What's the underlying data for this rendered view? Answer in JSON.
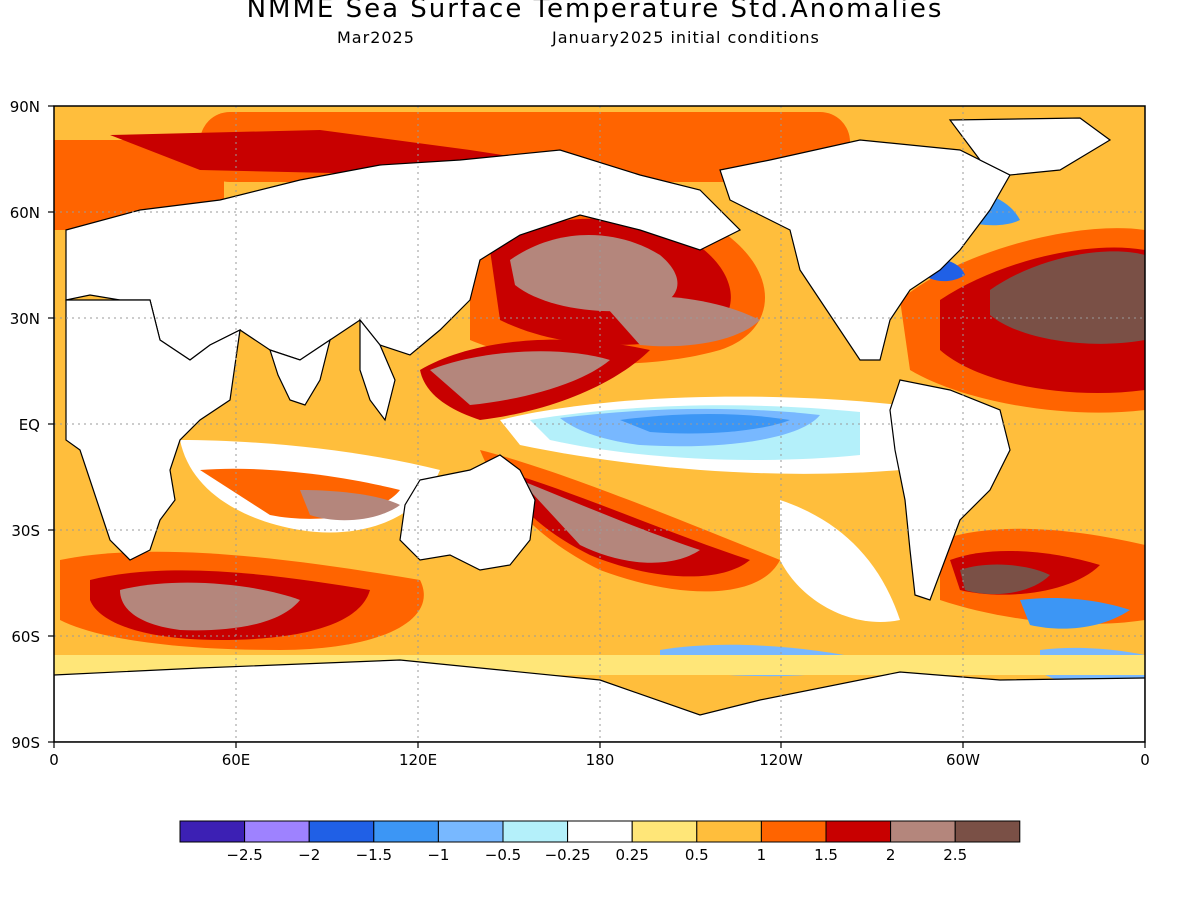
{
  "header": {
    "title": "NMME Sea Surface Temperature Std.Anomalies",
    "target_month": "Mar2025",
    "initial_conditions": "January2025 initial conditions"
  },
  "map": {
    "lat_labels": [
      "90N",
      "60N",
      "30N",
      "EQ",
      "30S",
      "60S",
      "90S"
    ],
    "lon_labels": [
      "0",
      "60E",
      "120E",
      "180",
      "120W",
      "60W",
      "0"
    ]
  },
  "colorbar": {
    "colors": [
      "#3c20b4",
      "#9e82ff",
      "#2060e6",
      "#3c96f5",
      "#78b8ff",
      "#b4f0fa",
      "#ffffff",
      "#ffe678",
      "#ffbe3c",
      "#ff6400",
      "#c80000",
      "#b4867c",
      "#7a5046"
    ],
    "tick_labels": [
      "-2.5",
      "-2",
      "-1.5",
      "-1",
      "-0.5",
      "-0.25",
      "0.25",
      "0.5",
      "1",
      "1.5",
      "2",
      "2.5"
    ]
  }
}
